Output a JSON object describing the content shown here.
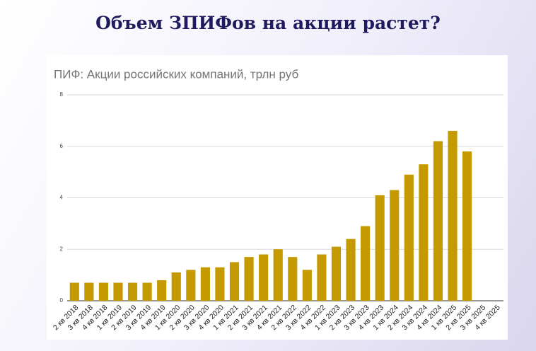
{
  "heading": "Объем ЗПИФов на акции растет?",
  "chart_data": {
    "type": "bar",
    "title": "ПИФ: Акции российских компаний, трлн руб",
    "categories": [
      "2 кв 2018",
      "3 кв 2018",
      "4 кв 2018",
      "1 кв 2019",
      "2 кв 2019",
      "3 кв 2019",
      "4 кв 2019",
      "1 кв 2020",
      "2 кв 2020",
      "3 кв 2020",
      "4 кв 2020",
      "1 кв 2021",
      "2 кв 2021",
      "3 кв 2021",
      "4 кв 2021",
      "2 кв 2022",
      "3 кв 2022",
      "4 кв 2022",
      "1 кв 2023",
      "2 кв 2023",
      "3 кв 2023",
      "4 кв 2023",
      "1 кв 2024",
      "2 кв 2024",
      "3 кв 2024",
      "4 кв 2024",
      "1 кв 2025",
      "2 кв 2025",
      "3 кв 2025",
      "4 кв 2025"
    ],
    "values": [
      0.7,
      0.7,
      0.7,
      0.7,
      0.7,
      0.7,
      0.8,
      1.1,
      1.2,
      1.3,
      1.3,
      1.5,
      1.7,
      1.8,
      2.0,
      1.7,
      1.2,
      1.8,
      2.1,
      2.4,
      2.9,
      4.1,
      4.3,
      4.9,
      5.3,
      6.2,
      6.6,
      5.8,
      null,
      null
    ],
    "color": "#c49a00",
    "ylim": [
      0,
      8
    ],
    "yticks": [
      0,
      2,
      4,
      6,
      8
    ],
    "grid": true
  }
}
